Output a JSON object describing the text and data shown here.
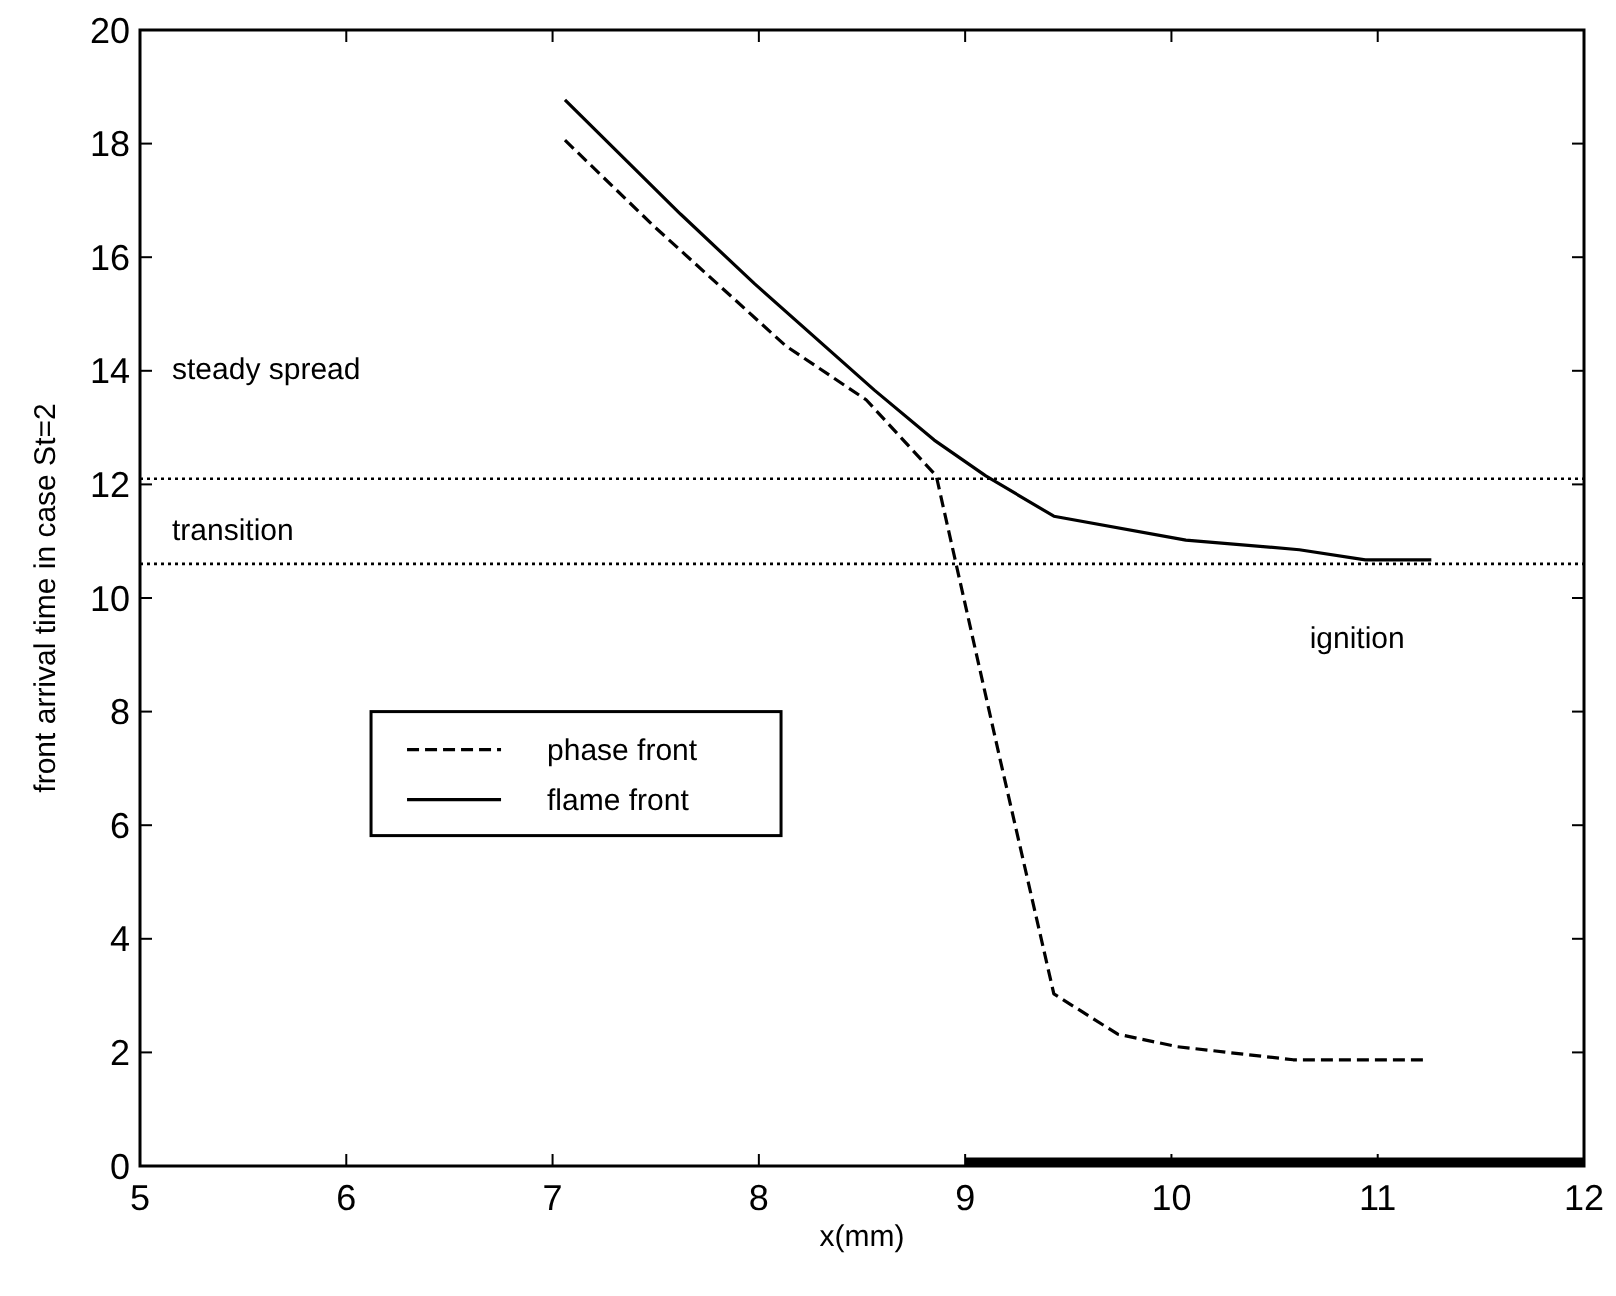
{
  "chart_data": {
    "type": "line",
    "xlabel": "x(mm)",
    "ylabel": "front arrival time in case St=2",
    "xlim": [
      5,
      12
    ],
    "xticks": [
      5,
      6,
      7,
      8,
      9,
      10,
      11,
      12
    ],
    "ylim": [
      0,
      20
    ],
    "yticks": [
      0,
      2,
      4,
      6,
      8,
      10,
      12,
      14,
      16,
      18,
      20
    ],
    "grid": false,
    "legend": "left",
    "marker": "none",
    "series": [
      {
        "name": "phase front",
        "color": "#000000",
        "line_style": "dashed",
        "x": [
          7.06,
          7.49,
          8.13,
          8.52,
          8.86,
          9.17,
          9.43,
          9.74,
          10.03,
          10.59,
          11.22
        ],
        "values": [
          18.06,
          16.55,
          14.44,
          13.49,
          12.15,
          7.15,
          3.03,
          2.32,
          2.1,
          1.87,
          1.87
        ]
      },
      {
        "type": "area",
        "color": "#000000",
        "x": [
          9,
          12
        ],
        "values": [
          0.15,
          0.15
        ]
      },
      {
        "name": "flame front",
        "color": "#000000",
        "line_style": "solid",
        "x": [
          7.06,
          7.62,
          7.98,
          8.56,
          8.85,
          9.1,
          9.43,
          10.07,
          10.62,
          10.94,
          11.26
        ],
        "values": [
          18.77,
          16.76,
          15.53,
          13.66,
          12.78,
          12.15,
          11.44,
          11.02,
          10.85,
          10.67,
          10.67
        ]
      }
    ],
    "ref_lines": [
      {
        "axis": "y",
        "value": 12.1,
        "line_style": "dotted",
        "color": "#000000"
      },
      {
        "axis": "y",
        "value": 10.6,
        "line_style": "dotted",
        "color": "#000000"
      }
    ],
    "annotations": [
      "steady spread",
      "transition",
      "ignition"
    ]
  }
}
